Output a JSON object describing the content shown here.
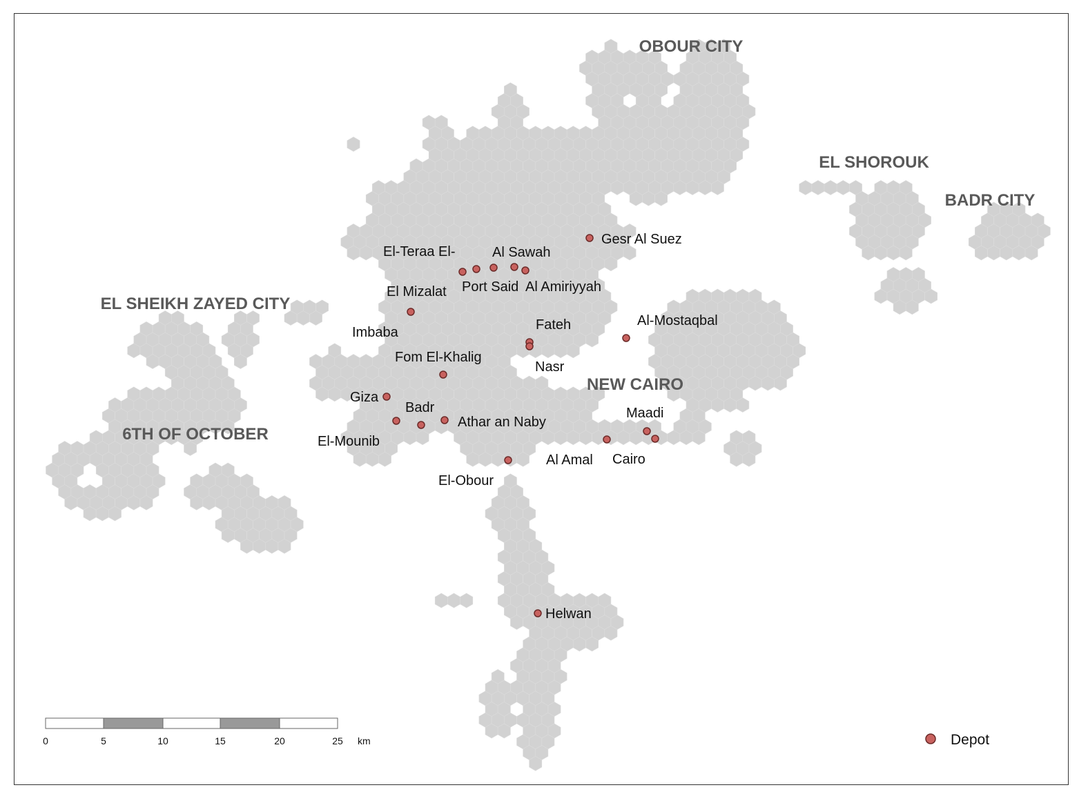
{
  "map": {
    "regions": [
      {
        "id": "obour-city",
        "label": "OBOUR CITY"
      },
      {
        "id": "el-shorouk",
        "label": "EL SHOROUK"
      },
      {
        "id": "badr-city",
        "label": "BADR CITY"
      },
      {
        "id": "el-sheikh-zayed-city",
        "label": "EL SHEIKH ZAYED CITY"
      },
      {
        "id": "6th-of-october",
        "label": "6TH OF OCTOBER"
      },
      {
        "id": "new-cairo",
        "label": "NEW CAIRO"
      }
    ],
    "depot_labels": [
      "Gesr Al Suez",
      "El-Teraa El-",
      "Al Sawah",
      "Port Said",
      "Al Amiriyyah",
      "El Mizalat",
      "Imbaba",
      "Fateh",
      "Al-Mostaqbal",
      "Fom El-Khalig",
      "Nasr",
      "Giza",
      "Badr",
      "Athar an Naby",
      "El-Mounib",
      "Maadi",
      "Al Amal",
      "Cairo",
      "El-Obour",
      "Helwan"
    ],
    "scale_bar": {
      "ticks": [
        "0",
        "5",
        "10",
        "15",
        "20",
        "25"
      ],
      "unit": "km"
    },
    "legend": {
      "label": "Depot"
    },
    "colors": {
      "hexagon": "#d2d2d2",
      "depot": "#c8625f",
      "region_text": "#595959"
    }
  }
}
